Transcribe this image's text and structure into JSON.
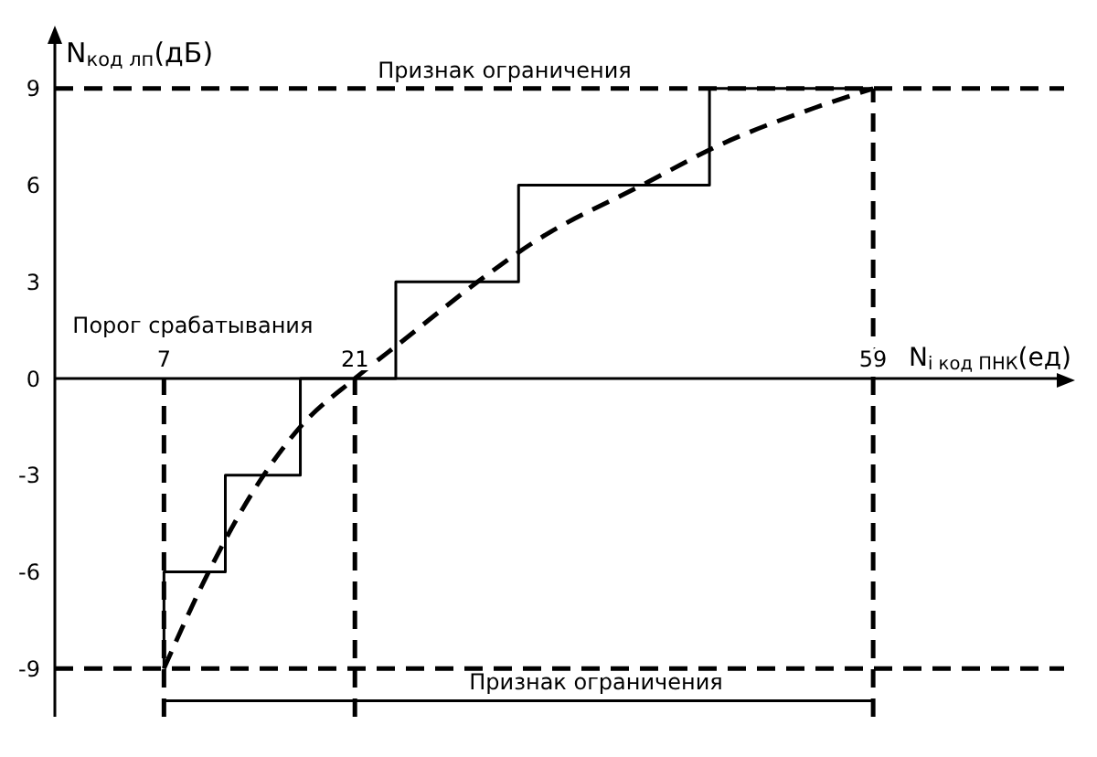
{
  "chart_data": {
    "type": "line",
    "xlabel": "N$_{i код ПНК}$(ед)",
    "ylabel": "N$_{код лп}$(дБ)",
    "series": [
      {
        "type": "step",
        "color": "#000000",
        "line_style": "solid",
        "x": [
          7,
          7,
          11.5,
          11.5,
          17,
          17,
          24,
          24,
          33,
          33,
          47,
          47,
          59
        ],
        "values": [
          -9,
          -6,
          -6,
          -3,
          -3,
          0,
          0,
          3,
          3,
          6,
          6,
          9,
          9
        ]
      },
      {
        "type": "line",
        "color": "#000000",
        "line_style": "dashed",
        "x": [
          7,
          10.4,
          14,
          17,
          21,
          24.6,
          30,
          34,
          42.5,
          47.5,
          54.7,
          59
        ],
        "values": [
          -9,
          -5.9,
          -3.2,
          -1.5,
          0,
          1.2,
          3,
          4.2,
          6.1,
          7.2,
          8.4,
          9
        ]
      }
    ],
    "xlim": [
      -1,
      73
    ],
    "ylim": [
      -10.5,
      10.5
    ],
    "xticks": [
      7,
      21,
      59
    ],
    "yticks": [
      -9,
      -6,
      -3,
      0,
      3,
      6,
      9
    ],
    "ref_lines": [
      {
        "axis": "y",
        "value": 9,
        "label": "Признак ограничения",
        "line_style": "dashed",
        "color": "#000000"
      },
      {
        "axis": "y",
        "value": -9,
        "line_style": "dashed",
        "color": "#000000"
      },
      {
        "axis": "x",
        "value": 7,
        "label": "Порог срабатывания",
        "line_style": "dashed",
        "color": "#000000"
      },
      {
        "axis": "x",
        "value": 21,
        "line_style": "dashed",
        "color": "#000000"
      },
      {
        "axis": "x",
        "value": 59,
        "line_style": "dashed",
        "color": "#000000"
      },
      {
        "axis": "y",
        "value": -10,
        "label": "Признак ограничения",
        "line_style": "solid",
        "color": "#000000"
      }
    ],
    "marker": "none"
  }
}
